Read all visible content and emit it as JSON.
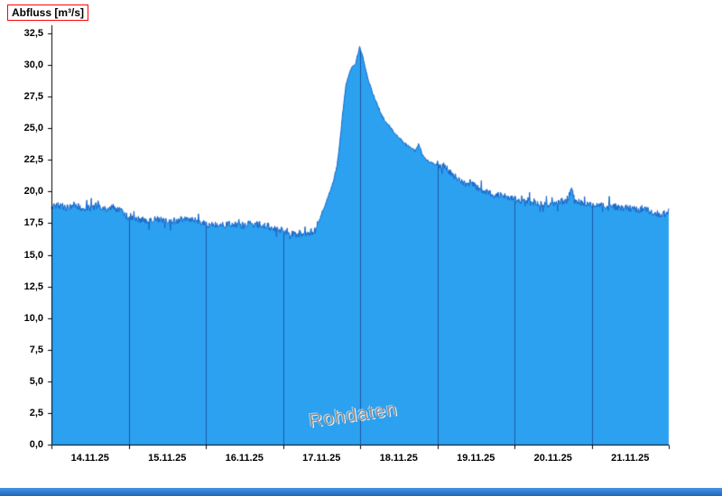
{
  "colors": {
    "fill": "#2BA1F0",
    "line": "#1563C5",
    "grid": "#1D5AA6",
    "axis": "#000000",
    "title_box": "#FF0000",
    "watermark": "#8F8F8F",
    "window_border": "#1F66B8",
    "window_border_light": "#4795E8"
  },
  "chart_data": {
    "type": "area",
    "title": "Abfluss [m³/s]",
    "watermark": "Rohdaten",
    "legend": "none",
    "grid": "vertical-daily",
    "ylim": [
      0,
      32.5
    ],
    "y_axis": {
      "min": 0,
      "max": 32.5,
      "step": 2.5,
      "tick_labels": [
        "0,0",
        "2,5",
        "5,0",
        "7,5",
        "10,0",
        "12,5",
        "15,0",
        "17,5",
        "20,0",
        "22,5",
        "25,0",
        "27,5",
        "30,0",
        "32,5"
      ]
    },
    "x_axis": {
      "tick_labels": [
        "14.11.25",
        "15.11.25",
        "16.11.25",
        "17.11.25",
        "18.11.25",
        "19.11.25",
        "20.11.25",
        "21.11.25"
      ],
      "span_days": 8,
      "unit": "days from 14.11.25 00:00"
    },
    "series": [
      {
        "name": "Abfluss Rohdaten",
        "unit": "m³/s",
        "points": [
          [
            0.0,
            18.8
          ],
          [
            0.1,
            18.9
          ],
          [
            0.2,
            18.7
          ],
          [
            0.3,
            19.0
          ],
          [
            0.4,
            18.6
          ],
          [
            0.5,
            18.7
          ],
          [
            0.6,
            18.9
          ],
          [
            0.7,
            18.6
          ],
          [
            0.8,
            18.7
          ],
          [
            0.9,
            18.5
          ],
          [
            1.0,
            17.9
          ],
          [
            1.1,
            17.8
          ],
          [
            1.25,
            17.7
          ],
          [
            1.4,
            17.8
          ],
          [
            1.55,
            17.6
          ],
          [
            1.7,
            17.8
          ],
          [
            1.85,
            17.7
          ],
          [
            2.0,
            17.4
          ],
          [
            2.15,
            17.3
          ],
          [
            2.3,
            17.4
          ],
          [
            2.5,
            17.3
          ],
          [
            2.7,
            17.4
          ],
          [
            2.85,
            17.2
          ],
          [
            3.0,
            16.9
          ],
          [
            3.1,
            16.7
          ],
          [
            3.2,
            16.6
          ],
          [
            3.3,
            16.7
          ],
          [
            3.4,
            16.9
          ],
          [
            3.45,
            17.4
          ],
          [
            3.5,
            18.2
          ],
          [
            3.55,
            19.0
          ],
          [
            3.6,
            19.8
          ],
          [
            3.65,
            20.7
          ],
          [
            3.7,
            22.0
          ],
          [
            3.74,
            24.0
          ],
          [
            3.78,
            26.5
          ],
          [
            3.82,
            28.5
          ],
          [
            3.86,
            29.4
          ],
          [
            3.9,
            29.9
          ],
          [
            3.94,
            30.1
          ],
          [
            3.97,
            30.8
          ],
          [
            3.99,
            31.4
          ],
          [
            4.01,
            31.2
          ],
          [
            4.04,
            30.5
          ],
          [
            4.08,
            29.4
          ],
          [
            4.12,
            28.6
          ],
          [
            4.16,
            27.8
          ],
          [
            4.2,
            27.2
          ],
          [
            4.26,
            26.3
          ],
          [
            4.32,
            25.6
          ],
          [
            4.4,
            25.0
          ],
          [
            4.48,
            24.4
          ],
          [
            4.56,
            23.9
          ],
          [
            4.64,
            23.5
          ],
          [
            4.72,
            23.2
          ],
          [
            4.76,
            23.8
          ],
          [
            4.8,
            23.0
          ],
          [
            4.88,
            22.4
          ],
          [
            4.95,
            22.2
          ],
          [
            5.05,
            22.1
          ],
          [
            5.12,
            21.9
          ],
          [
            5.18,
            21.4
          ],
          [
            5.26,
            21.1
          ],
          [
            5.34,
            20.7
          ],
          [
            5.4,
            20.5
          ],
          [
            5.44,
            20.9
          ],
          [
            5.5,
            20.3
          ],
          [
            5.58,
            20.1
          ],
          [
            5.66,
            19.9
          ],
          [
            5.74,
            19.7
          ],
          [
            5.82,
            19.8
          ],
          [
            5.9,
            19.6
          ],
          [
            6.0,
            19.4
          ],
          [
            6.15,
            19.2
          ],
          [
            6.3,
            19.1
          ],
          [
            6.45,
            19.0
          ],
          [
            6.6,
            19.2
          ],
          [
            6.7,
            19.3
          ],
          [
            6.74,
            20.5
          ],
          [
            6.78,
            19.2
          ],
          [
            6.9,
            19.1
          ],
          [
            7.0,
            19.0
          ],
          [
            7.15,
            18.9
          ],
          [
            7.3,
            18.8
          ],
          [
            7.45,
            18.7
          ],
          [
            7.6,
            18.6
          ],
          [
            7.75,
            18.5
          ],
          [
            7.9,
            18.1
          ],
          [
            8.0,
            18.4
          ]
        ]
      }
    ],
    "noise": {
      "base_amplitude": 0.28,
      "peak_amplitude": 0.1,
      "peak_window": [
        3.45,
        5.0
      ],
      "spike_probability": 0.05,
      "spike_factor": 2.8,
      "seed": 42
    }
  }
}
